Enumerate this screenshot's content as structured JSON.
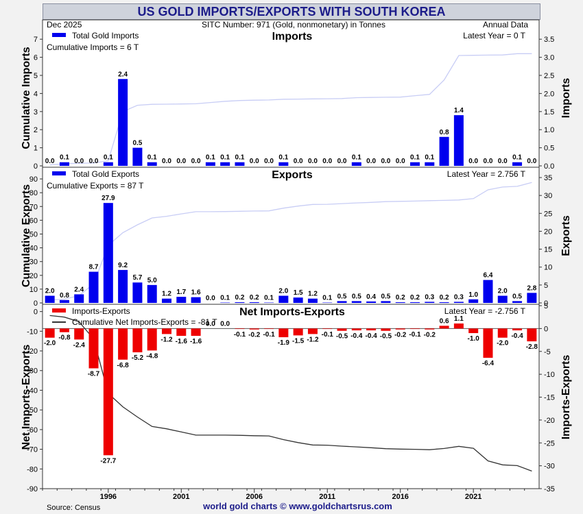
{
  "header": {
    "title": "US GOLD IMPORTS/EXPORTS WITH SOUTH KOREA",
    "date": "Dec  2025",
    "sitc": "SITC Number: 971 (Gold, nonmonetary) in Tonnes",
    "frequency": "Annual Data"
  },
  "footer": {
    "source": "Source: Census",
    "credit": "world gold charts © www.goldchartsrus.com"
  },
  "colors": {
    "imports_bar": "#0000ee",
    "exports_bar": "#0000ee",
    "net_bar": "#ee0000",
    "cum_imports_line": "#c8cdf5",
    "cum_exports_line": "#c8cdf5",
    "cum_net_line": "#333333",
    "plot_bg": "#ffffff"
  },
  "chart_data": [
    {
      "type": "bar",
      "title": "Imports",
      "legend": "Total Gold Imports",
      "legend_position": "top-left",
      "cumulative_label": "Cumulative Imports = 6 T",
      "latest_label": "Latest Year = 0 T",
      "ylabel_left": "Cumulative Imports",
      "ylabel_right": "Imports",
      "ylim_left": [
        0,
        7.5
      ],
      "ylim_right": [
        0,
        3.75
      ],
      "ticks_left": [
        0,
        1,
        2,
        3,
        4,
        5,
        6,
        7
      ],
      "ticks_right": [
        0.0,
        0.5,
        1.0,
        1.5,
        2.0,
        2.5,
        3.0,
        3.5
      ],
      "x": [
        1992,
        1993,
        1994,
        1995,
        1996,
        1997,
        1998,
        1999,
        2000,
        2001,
        2002,
        2003,
        2004,
        2005,
        2006,
        2007,
        2008,
        2009,
        2010,
        2011,
        2012,
        2013,
        2014,
        2015,
        2016,
        2017,
        2018,
        2019,
        2020,
        2021,
        2022,
        2023,
        2024,
        2025
      ],
      "values": [
        0.0,
        0.1,
        0.0,
        0.0,
        0.1,
        2.4,
        0.5,
        0.1,
        0.0,
        0.0,
        0.0,
        0.1,
        0.1,
        0.1,
        0.0,
        0.0,
        0.1,
        0.0,
        0.0,
        0.0,
        0.0,
        0.1,
        0.0,
        0.0,
        0.0,
        0.1,
        0.1,
        0.8,
        1.4,
        0.0,
        0.0,
        0.0,
        0.1,
        0.0
      ],
      "labels": [
        "0.0",
        "0.1",
        "0.0",
        "0.0",
        "0.1",
        "2.4",
        "0.5",
        "0.1",
        "0.0",
        "0.0",
        "0.0",
        "0.1",
        "0.1",
        "0.1",
        "0.0",
        "0.0",
        "0.1",
        "0.0",
        "0.0",
        "0.0",
        "0.0",
        "0.1",
        "0.0",
        "0.0",
        "0.0",
        "0.1",
        "0.1",
        "0.8",
        "1.4",
        "0.0",
        "0.0",
        "0.0",
        "0.1",
        "0.0"
      ],
      "cumulative": [
        0.05,
        0.12,
        0.14,
        0.16,
        0.28,
        3.0,
        3.35,
        3.4,
        3.41,
        3.42,
        3.43,
        3.5,
        3.57,
        3.61,
        3.63,
        3.64,
        3.68,
        3.69,
        3.7,
        3.71,
        3.72,
        3.77,
        3.78,
        3.79,
        3.8,
        3.88,
        3.95,
        4.75,
        6.1,
        6.11,
        6.12,
        6.13,
        6.2,
        6.2
      ]
    },
    {
      "type": "bar",
      "title": "Exports",
      "legend": "Total Gold Exports",
      "legend_position": "top-left",
      "cumulative_label": "Cumulative Exports = 87 T",
      "latest_label": "Latest Year = 2.756 T",
      "ylabel_left": "Cumulative Exports",
      "ylabel_right": "Exports",
      "ylim_left": [
        0,
        97.5
      ],
      "ylim_right": [
        0,
        37.5
      ],
      "ticks_left": [
        0,
        10,
        20,
        30,
        40,
        50,
        60,
        70,
        80,
        90
      ],
      "ticks_right": [
        0,
        5,
        10,
        15,
        20,
        25,
        30,
        35
      ],
      "x": [
        1992,
        1993,
        1994,
        1995,
        1996,
        1997,
        1998,
        1999,
        2000,
        2001,
        2002,
        2003,
        2004,
        2005,
        2006,
        2007,
        2008,
        2009,
        2010,
        2011,
        2012,
        2013,
        2014,
        2015,
        2016,
        2017,
        2018,
        2019,
        2020,
        2021,
        2022,
        2023,
        2024,
        2025
      ],
      "values": [
        2.0,
        0.8,
        2.4,
        8.7,
        27.9,
        9.2,
        5.7,
        5.0,
        1.2,
        1.7,
        1.6,
        0.0,
        0.1,
        0.2,
        0.2,
        0.1,
        2.0,
        1.5,
        1.2,
        0.1,
        0.5,
        0.5,
        0.4,
        0.5,
        0.2,
        0.2,
        0.3,
        0.2,
        0.3,
        1.0,
        6.4,
        2.0,
        0.5,
        2.8
      ],
      "labels": [
        "2.0",
        "0.8",
        "2.4",
        "8.7",
        "27.9",
        "9.2",
        "5.7",
        "5.0",
        "1.2",
        "1.7",
        "1.6",
        "0.0",
        "0.1",
        "0.2",
        "0.2",
        "0.1",
        "2.0",
        "1.5",
        "1.2",
        "0.1",
        "0.5",
        "0.5",
        "0.4",
        "0.5",
        "0.2",
        "0.2",
        "0.3",
        "0.2",
        "0.3",
        "1.0",
        "6.4",
        "2.0",
        "0.5",
        "2.8"
      ],
      "cumulative": [
        2.0,
        2.8,
        5.2,
        13.9,
        41.8,
        51.0,
        56.7,
        61.7,
        62.9,
        64.6,
        66.2,
        66.2,
        66.3,
        66.5,
        66.7,
        66.8,
        68.8,
        70.3,
        71.5,
        71.6,
        72.1,
        72.6,
        73.0,
        73.5,
        73.7,
        73.9,
        74.2,
        74.4,
        74.7,
        75.7,
        82.1,
        84.1,
        84.6,
        87.4
      ]
    },
    {
      "type": "bar",
      "title": "Net Imports-Exports",
      "legend": "Imports-Exports",
      "legend_line": "Cumulative Net Imports-Exports = -81 T",
      "legend_position": "top-left",
      "latest_label": "Latest Year = -2.756 T",
      "ylabel_left": "Net Imports-Exports",
      "ylabel_right": "Imports-Exports",
      "ylim_left": [
        -90,
        3
      ],
      "ylim_right": [
        -35,
        5
      ],
      "ticks_left": [
        0,
        -10,
        -20,
        -30,
        -40,
        -50,
        -60,
        -70,
        -80,
        -90
      ],
      "ticks_right": [
        5,
        0,
        -5,
        -10,
        -15,
        -20,
        -25,
        -30,
        -35
      ],
      "xticks": [
        "1996",
        "2001",
        "2006",
        "2011",
        "2016",
        "2021"
      ],
      "x": [
        1992,
        1993,
        1994,
        1995,
        1996,
        1997,
        1998,
        1999,
        2000,
        2001,
        2002,
        2003,
        2004,
        2005,
        2006,
        2007,
        2008,
        2009,
        2010,
        2011,
        2012,
        2013,
        2014,
        2015,
        2016,
        2017,
        2018,
        2019,
        2020,
        2021,
        2022,
        2023,
        2024,
        2025
      ],
      "values": [
        -2.0,
        -0.8,
        -2.4,
        -8.7,
        -27.7,
        -6.8,
        -5.2,
        -4.8,
        -1.2,
        -1.6,
        -1.6,
        0.0,
        0.0,
        -0.1,
        -0.2,
        -0.1,
        -1.9,
        -1.5,
        -1.2,
        -0.1,
        -0.5,
        -0.4,
        -0.4,
        -0.5,
        -0.2,
        -0.1,
        -0.2,
        0.6,
        1.1,
        -1.0,
        -6.4,
        -2.0,
        -0.4,
        -2.8
      ],
      "labels": [
        "-2.0",
        "-0.8",
        "-2.4",
        "-8.7",
        "-27.7",
        "-6.8",
        "-5.2",
        "-4.8",
        "-1.2",
        "-1.6",
        "-1.6",
        "0.0",
        "0.0",
        "-0.1",
        "-0.2",
        "-0.1",
        "-1.9",
        "-1.5",
        "-1.2",
        "-0.1",
        "-0.5",
        "-0.4",
        "-0.4",
        "-0.5",
        "-0.2",
        "-0.1",
        "-0.2",
        "0.6",
        "1.1",
        "-1.0",
        "-6.4",
        "-2.0",
        "-0.4",
        "-2.8"
      ],
      "cumulative": [
        -2.0,
        -2.8,
        -5.2,
        -13.9,
        -41.6,
        -48.4,
        -53.6,
        -58.4,
        -59.6,
        -61.2,
        -62.8,
        -62.8,
        -62.8,
        -62.9,
        -63.1,
        -63.2,
        -65.1,
        -66.6,
        -67.8,
        -67.9,
        -68.4,
        -68.8,
        -69.2,
        -69.7,
        -69.9,
        -70.0,
        -70.2,
        -69.6,
        -68.5,
        -69.5,
        -75.9,
        -77.9,
        -78.3,
        -81.1
      ]
    }
  ]
}
